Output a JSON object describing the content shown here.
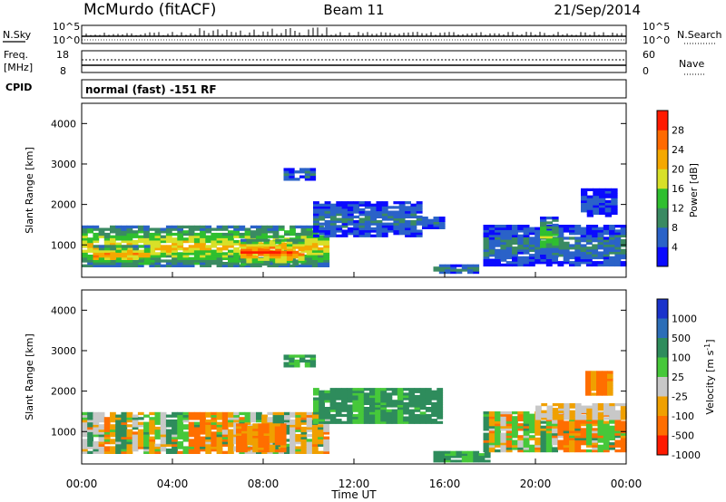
{
  "header": {
    "title": "McMurdo (fitACF)",
    "beam": "Beam 11",
    "date": "21/Sep/2014"
  },
  "status_panels": {
    "nsky_label": "N.Sky",
    "nsearch_label": "N.Search",
    "freq_label_1": "Freq.",
    "freq_label_2": "[MHz]",
    "nave_label": "Nave",
    "cpid_label": "CPID",
    "cpid_text": "normal (fast) -151 RF",
    "noise_ticks": [
      "10^5",
      "10^0"
    ],
    "freq_ticks": [
      "18",
      "8"
    ],
    "nave_ticks": [
      "60",
      "0"
    ]
  },
  "chart_data": [
    {
      "type": "heatmap",
      "panel": "power",
      "ylabel": "Slant Range [km]",
      "y_ticks": [
        "1000",
        "2000",
        "3000",
        "4000"
      ],
      "ylim": [
        200,
        4500
      ],
      "colorbar_label": "Power [dB]",
      "colorbar_ticks": [
        "4",
        "8",
        "12",
        "16",
        "20",
        "24",
        "28"
      ],
      "colorbar_range": [
        0,
        32
      ],
      "colors": [
        "#0a0aff",
        "#2a62c8",
        "#3a8a62",
        "#2fbf2f",
        "#d8e028",
        "#f5a800",
        "#ff6a00",
        "#ff1a00"
      ],
      "regions": [
        {
          "t": [
            0.0,
            10.9
          ],
          "r": [
            460,
            1480
          ],
          "level": 22
        },
        {
          "t": [
            7.0,
            9.8
          ],
          "r": [
            500,
            1150
          ],
          "level": 30
        },
        {
          "t": [
            0.5,
            3.0
          ],
          "r": [
            520,
            1000
          ],
          "level": 27
        },
        {
          "t": [
            10.2,
            15.0
          ],
          "r": [
            1200,
            2080
          ],
          "level": 8
        },
        {
          "t": [
            15.0,
            16.0
          ],
          "r": [
            1400,
            1700
          ],
          "level": 8
        },
        {
          "t": [
            8.9,
            10.3
          ],
          "r": [
            2600,
            2900
          ],
          "level": 9
        },
        {
          "t": [
            15.5,
            17.5
          ],
          "r": [
            300,
            520
          ],
          "level": 14
        },
        {
          "t": [
            17.7,
            24.0
          ],
          "r": [
            480,
            1500
          ],
          "level": 9
        },
        {
          "t": [
            20.2,
            21.0
          ],
          "r": [
            700,
            1700
          ],
          "level": 16
        },
        {
          "t": [
            22.0,
            23.6
          ],
          "r": [
            1700,
            2400
          ],
          "level": 6
        }
      ]
    },
    {
      "type": "heatmap",
      "panel": "velocity",
      "ylabel": "Slant Range [km]",
      "y_ticks": [
        "1000",
        "2000",
        "3000",
        "4000"
      ],
      "ylim": [
        200,
        4500
      ],
      "colorbar_label": "Velocity [m s^-1]",
      "colorbar_ticks": [
        "1000",
        "500",
        "100",
        "25",
        "-25",
        "-100",
        "-500",
        "-1000"
      ],
      "colors": [
        "#1a33cc",
        "#2c6eb8",
        "#2e8c5c",
        "#46c83a",
        "#c8c8c8",
        "#f0a000",
        "#ff6e00",
        "#ff1a00"
      ],
      "regions": [
        {
          "t": [
            0.0,
            10.9
          ],
          "r": [
            460,
            1480
          ],
          "class": "mixed_green_orange"
        },
        {
          "t": [
            6.8,
            9.0
          ],
          "r": [
            500,
            1200
          ],
          "class": "orange"
        },
        {
          "t": [
            10.2,
            15.9
          ],
          "r": [
            1200,
            2080
          ],
          "class": "green"
        },
        {
          "t": [
            8.9,
            10.3
          ],
          "r": [
            2600,
            2900
          ],
          "class": "green"
        },
        {
          "t": [
            15.5,
            18.0
          ],
          "r": [
            250,
            520
          ],
          "class": "green"
        },
        {
          "t": [
            17.7,
            24.0
          ],
          "r": [
            500,
            1500
          ],
          "class": "mixed_grey_orange"
        },
        {
          "t": [
            20.0,
            24.0
          ],
          "r": [
            1300,
            1700
          ],
          "class": "grey"
        },
        {
          "t": [
            22.2,
            23.4
          ],
          "r": [
            1900,
            2500
          ],
          "class": "orange"
        }
      ]
    }
  ],
  "time_axis": {
    "xlabel": "Time UT",
    "ticks": [
      "00:00",
      "04:00",
      "08:00",
      "12:00",
      "16:00",
      "20:00",
      "00:00"
    ]
  }
}
